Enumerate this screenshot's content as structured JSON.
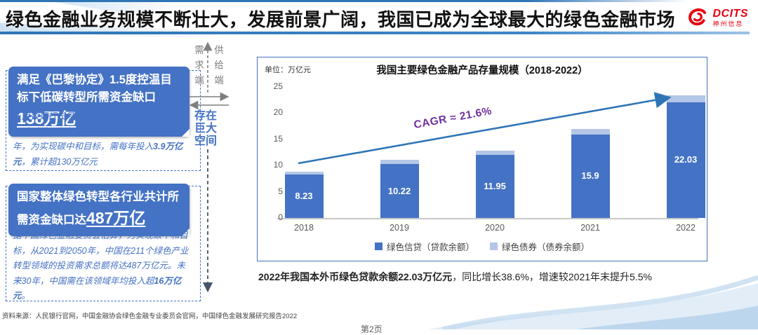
{
  "slide": {
    "title": "绿色金融业务规模不断壮大，发展前景广阔，我国已成为全球最大的绿色金融市场",
    "page_label": "第2页"
  },
  "logo": {
    "brand": "DCITS",
    "brand_cn": "神州信息"
  },
  "left_panels": [
    {
      "heading_prefix": "满足《巴黎协定》1.5度控温目标下低碳转型所需资金缺口",
      "heading_number": "138万亿",
      "body_pre": "人民银行行长易纲发言，预计2030年前，中国碳减排需每年投入2.2万亿元；2030-2060年，为实现碳中和目标，需每年投入",
      "body_bold": "3.9万亿元",
      "body_post": "，累计超130万亿元"
    },
    {
      "heading_prefix": "国家整体绿色转型各行业共计所需资金缺口达",
      "heading_number": "487万亿",
      "body_pre": "据中国绿色金融委员会估算，为实现碳中和目标，从2021到2050年，中国在211个绿色产业转型领域的投资需求总额将达487万亿元。未来30年，中国需在该领域年均投入超",
      "body_bold": "16万亿元",
      "body_post": "。"
    }
  ],
  "divider": {
    "demand_label": "需求端",
    "supply_label": "供给端",
    "gap_label": "存在巨大空间"
  },
  "chart_data": {
    "type": "bar",
    "stacked": true,
    "title": "我国主要绿色金融产品存量规模（2018-2022）",
    "unit_label": "单位：万亿元",
    "categories": [
      "2018",
      "2019",
      "2020",
      "2021",
      "2022"
    ],
    "series": [
      {
        "name": "绿色信贷（贷款余额）",
        "color": "#4472C4",
        "values": [
          8.23,
          10.22,
          11.95,
          15.9,
          22.03
        ],
        "data_labels": [
          "8.23",
          "10.22",
          "11.95",
          "15.9",
          "22.03"
        ]
      },
      {
        "name": "绿色债券（债券余额）",
        "color": "#B4C7E7",
        "values": [
          0.6,
          0.9,
          0.9,
          1.1,
          1.3
        ],
        "data_labels": [
          "",
          "",
          "",
          "",
          ""
        ]
      }
    ],
    "ylim": [
      0,
      25
    ],
    "yticks": [
      0,
      5,
      10,
      15,
      20,
      25
    ],
    "grid": false,
    "legend_position": "bottom",
    "annotation": {
      "text": "CAGR ≈ 21.6%",
      "color": "#7030A0"
    }
  },
  "summary": {
    "bold": "2022年我国本外币绿色贷款余额22.03万亿元",
    "rest": "，同比增长38.6%，增速较2021年末提升5.5%"
  },
  "footer": {
    "source": "资料来源：人民银行官网，中国金融协会绿色金融专业委员会官网，中国绿色金融发展研究报告2022"
  },
  "colors": {
    "accent_blue": "#4472C4",
    "light_blue": "#B4C7E7",
    "rule_blue": "#2E75B6",
    "purple": "#7030A0",
    "logo_red": "#E60012"
  }
}
